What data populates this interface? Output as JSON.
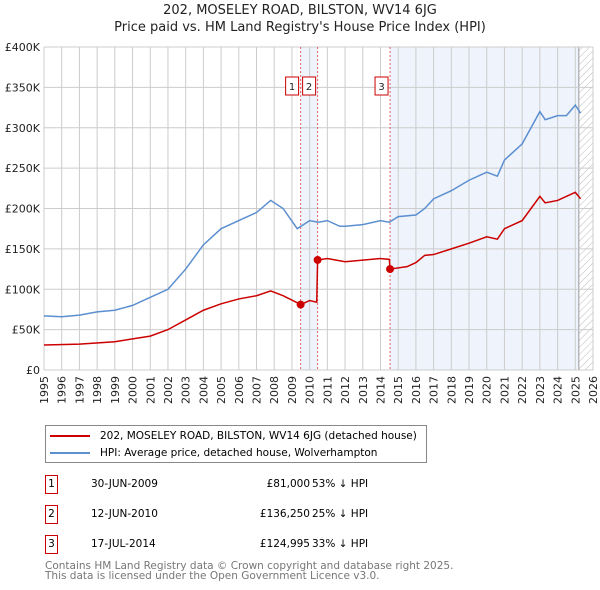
{
  "chart_data": {
    "type": "line",
    "title": "202, MOSELEY ROAD, BILSTON, WV14 6JG",
    "subtitle": "Price paid vs. HM Land Registry's House Price Index (HPI)",
    "xlim": [
      1995,
      2026
    ],
    "ylim": [
      0,
      400000
    ],
    "x_ticks": [
      "1995",
      "1996",
      "1997",
      "1998",
      "1999",
      "2000",
      "2001",
      "2002",
      "2003",
      "2004",
      "2005",
      "2006",
      "2007",
      "2008",
      "2009",
      "2010",
      "2011",
      "2012",
      "2013",
      "2014",
      "2015",
      "2016",
      "2017",
      "2018",
      "2019",
      "2020",
      "2021",
      "2022",
      "2023",
      "2024",
      "2025",
      "2026"
    ],
    "y_ticks": [
      {
        "v": 0,
        "l": "£0"
      },
      {
        "v": 50000,
        "l": "£50K"
      },
      {
        "v": 100000,
        "l": "£100K"
      },
      {
        "v": 150000,
        "l": "£150K"
      },
      {
        "v": 200000,
        "l": "£200K"
      },
      {
        "v": 250000,
        "l": "£250K"
      },
      {
        "v": 300000,
        "l": "£300K"
      },
      {
        "v": 350000,
        "l": "£350K"
      },
      {
        "v": 400000,
        "l": "£400K"
      }
    ],
    "series": [
      {
        "name": "202, MOSELEY ROAD, BILSTON, WV14 6JG (detached house)",
        "color": "#cc0000",
        "x": [
          1995,
          1997,
          1999,
          2001,
          2002,
          2003,
          2004,
          2005,
          2006,
          2007,
          2007.8,
          2008.5,
          2009.5,
          2010,
          2010.4,
          2010.45,
          2011,
          2012,
          2013,
          2014,
          2014.5,
          2014.54,
          2015.5,
          2016,
          2016.5,
          2017,
          2018,
          2019,
          2020,
          2020.6,
          2021,
          2022,
          2022.5,
          2023,
          2023.3,
          2024,
          2025,
          2025.3
        ],
        "y": [
          31000,
          32000,
          35000,
          42000,
          50000,
          62000,
          74000,
          82000,
          88000,
          92000,
          98000,
          92000,
          81000,
          86000,
          84000,
          136250,
          138000,
          134000,
          136000,
          138000,
          137000,
          124995,
          128000,
          133000,
          142000,
          143000,
          150000,
          157000,
          165000,
          162000,
          175000,
          185000,
          200000,
          215000,
          207000,
          210000,
          220000,
          212000
        ]
      },
      {
        "name": "HPI: Average price, detached house, Wolverhampton",
        "color": "#5b8fd0",
        "x": [
          1995,
          1996,
          1997,
          1998,
          1999,
          2000,
          2001,
          2002,
          2003,
          2004,
          2005,
          2006,
          2007,
          2007.8,
          2008.5,
          2009.3,
          2010,
          2010.5,
          2011,
          2011.7,
          2012,
          2013,
          2014,
          2014.5,
          2015,
          2016,
          2016.5,
          2017,
          2018,
          2019,
          2020,
          2020.6,
          2021,
          2022,
          2022.5,
          2023,
          2023.3,
          2024,
          2024.5,
          2025,
          2025.3
        ],
        "y": [
          67000,
          66000,
          68000,
          72000,
          74000,
          80000,
          90000,
          100000,
          125000,
          155000,
          175000,
          185000,
          195000,
          210000,
          200000,
          175000,
          185000,
          183000,
          185000,
          178000,
          178000,
          180000,
          185000,
          183000,
          190000,
          192000,
          200000,
          212000,
          222000,
          235000,
          245000,
          240000,
          260000,
          280000,
          300000,
          320000,
          310000,
          315000,
          315000,
          328000,
          318000
        ]
      }
    ],
    "sales": [
      {
        "label": "1",
        "x": 2009.49,
        "y": 81000,
        "date": "30-JUN-2009",
        "price": "£81,000",
        "hpi": "53% ↓ HPI"
      },
      {
        "label": "2",
        "x": 2010.45,
        "y": 136250,
        "date": "12-JUN-2010",
        "price": "£136,250",
        "hpi": "25% ↓ HPI"
      },
      {
        "label": "3",
        "x": 2014.54,
        "y": 124995,
        "date": "17-JUL-2014",
        "price": "£124,995",
        "hpi": "33% ↓ HPI"
      }
    ],
    "forecast_start": 2025.2
  },
  "footer": {
    "line1": "Contains HM Land Registry data © Crown copyright and database right 2025.",
    "line2": "This data is licensed under the Open Government Licence v3.0."
  }
}
